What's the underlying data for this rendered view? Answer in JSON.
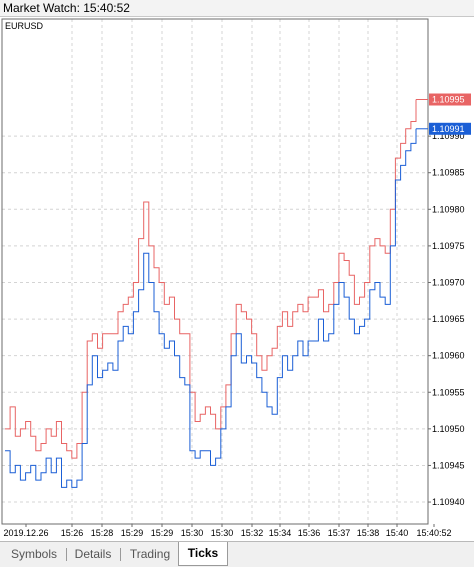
{
  "window": {
    "title": "Market Watch: 15:40:52"
  },
  "chart_data": {
    "type": "line",
    "title": "EURUSD",
    "ylim": [
      1.10937,
      1.11006
    ],
    "y_ticks": [
      "1.10990",
      "1.10985",
      "1.10980",
      "1.10975",
      "1.10970",
      "1.10965",
      "1.10960",
      "1.10955",
      "1.10950",
      "1.10945",
      "1.10940"
    ],
    "x_ticks": [
      "2019.12.26",
      "15:26",
      "15:28",
      "15:29",
      "15:29",
      "15:30",
      "15:30",
      "15:32",
      "15:34",
      "15:36",
      "15:37",
      "15:38",
      "15:40",
      "15:40:52"
    ],
    "grid": true,
    "colors": {
      "ask": "#e86464",
      "bid": "#1b5fd6"
    },
    "current": {
      "ask": "1.10995",
      "bid": "1.10991"
    },
    "series": [
      {
        "values": [
          1.1095,
          1.10953,
          1.10949,
          1.1095,
          1.10951,
          1.10949,
          1.10947,
          1.10948,
          1.1095,
          1.10949,
          1.10951,
          1.10948,
          1.10947,
          1.10946,
          1.10948,
          1.10955,
          1.10962,
          1.10963,
          1.10961,
          1.10963,
          1.10963,
          1.10963,
          1.10966,
          1.10967,
          1.10968,
          1.1097,
          1.10976,
          1.10981,
          1.10975,
          1.10972,
          1.1097,
          1.10967,
          1.10968,
          1.10965,
          1.10963,
          1.10963,
          1.10955,
          1.10951,
          1.10952,
          1.10953,
          1.10952,
          1.1095,
          1.10953,
          1.10956,
          1.10963,
          1.10967,
          1.10966,
          1.10965,
          1.10963,
          1.1096,
          1.10958,
          1.1096,
          1.10961,
          1.10964,
          1.10966,
          1.10964,
          1.10966,
          1.10967,
          1.10966,
          1.10968,
          1.10968,
          1.10969,
          1.10966,
          1.10967,
          1.1097,
          1.10974,
          1.10973,
          1.10971,
          1.10967,
          1.10968,
          1.1097,
          1.10975,
          1.10976,
          1.10975,
          1.10974,
          1.1098,
          1.10987,
          1.10989,
          1.10991,
          1.10992,
          1.10995
        ]
      },
      {
        "values": [
          1.10947,
          1.10944,
          1.10945,
          1.10943,
          1.10944,
          1.10945,
          1.10943,
          1.10944,
          1.10946,
          1.10944,
          1.10946,
          1.10942,
          1.10943,
          1.10942,
          1.10943,
          1.10948,
          1.10956,
          1.1096,
          1.10957,
          1.10958,
          1.10959,
          1.10958,
          1.10962,
          1.10964,
          1.10963,
          1.10966,
          1.10969,
          1.10974,
          1.1097,
          1.10966,
          1.10963,
          1.10961,
          1.10962,
          1.1096,
          1.10957,
          1.10956,
          1.10947,
          1.10946,
          1.10947,
          1.10947,
          1.10945,
          1.10946,
          1.1095,
          1.10953,
          1.1096,
          1.10963,
          1.10959,
          1.1096,
          1.10959,
          1.10957,
          1.10955,
          1.10953,
          1.10952,
          1.10957,
          1.1096,
          1.10958,
          1.1096,
          1.10962,
          1.1096,
          1.10962,
          1.10962,
          1.10965,
          1.10962,
          1.10963,
          1.10967,
          1.1097,
          1.10968,
          1.10965,
          1.10963,
          1.10964,
          1.10965,
          1.10969,
          1.1097,
          1.10968,
          1.10967,
          1.10975,
          1.10984,
          1.10986,
          1.10988,
          1.10989,
          1.10991
        ]
      }
    ]
  },
  "tabs": [
    {
      "label": "Symbols"
    },
    {
      "label": "Details"
    },
    {
      "label": "Trading"
    },
    {
      "label": "Ticks"
    }
  ]
}
